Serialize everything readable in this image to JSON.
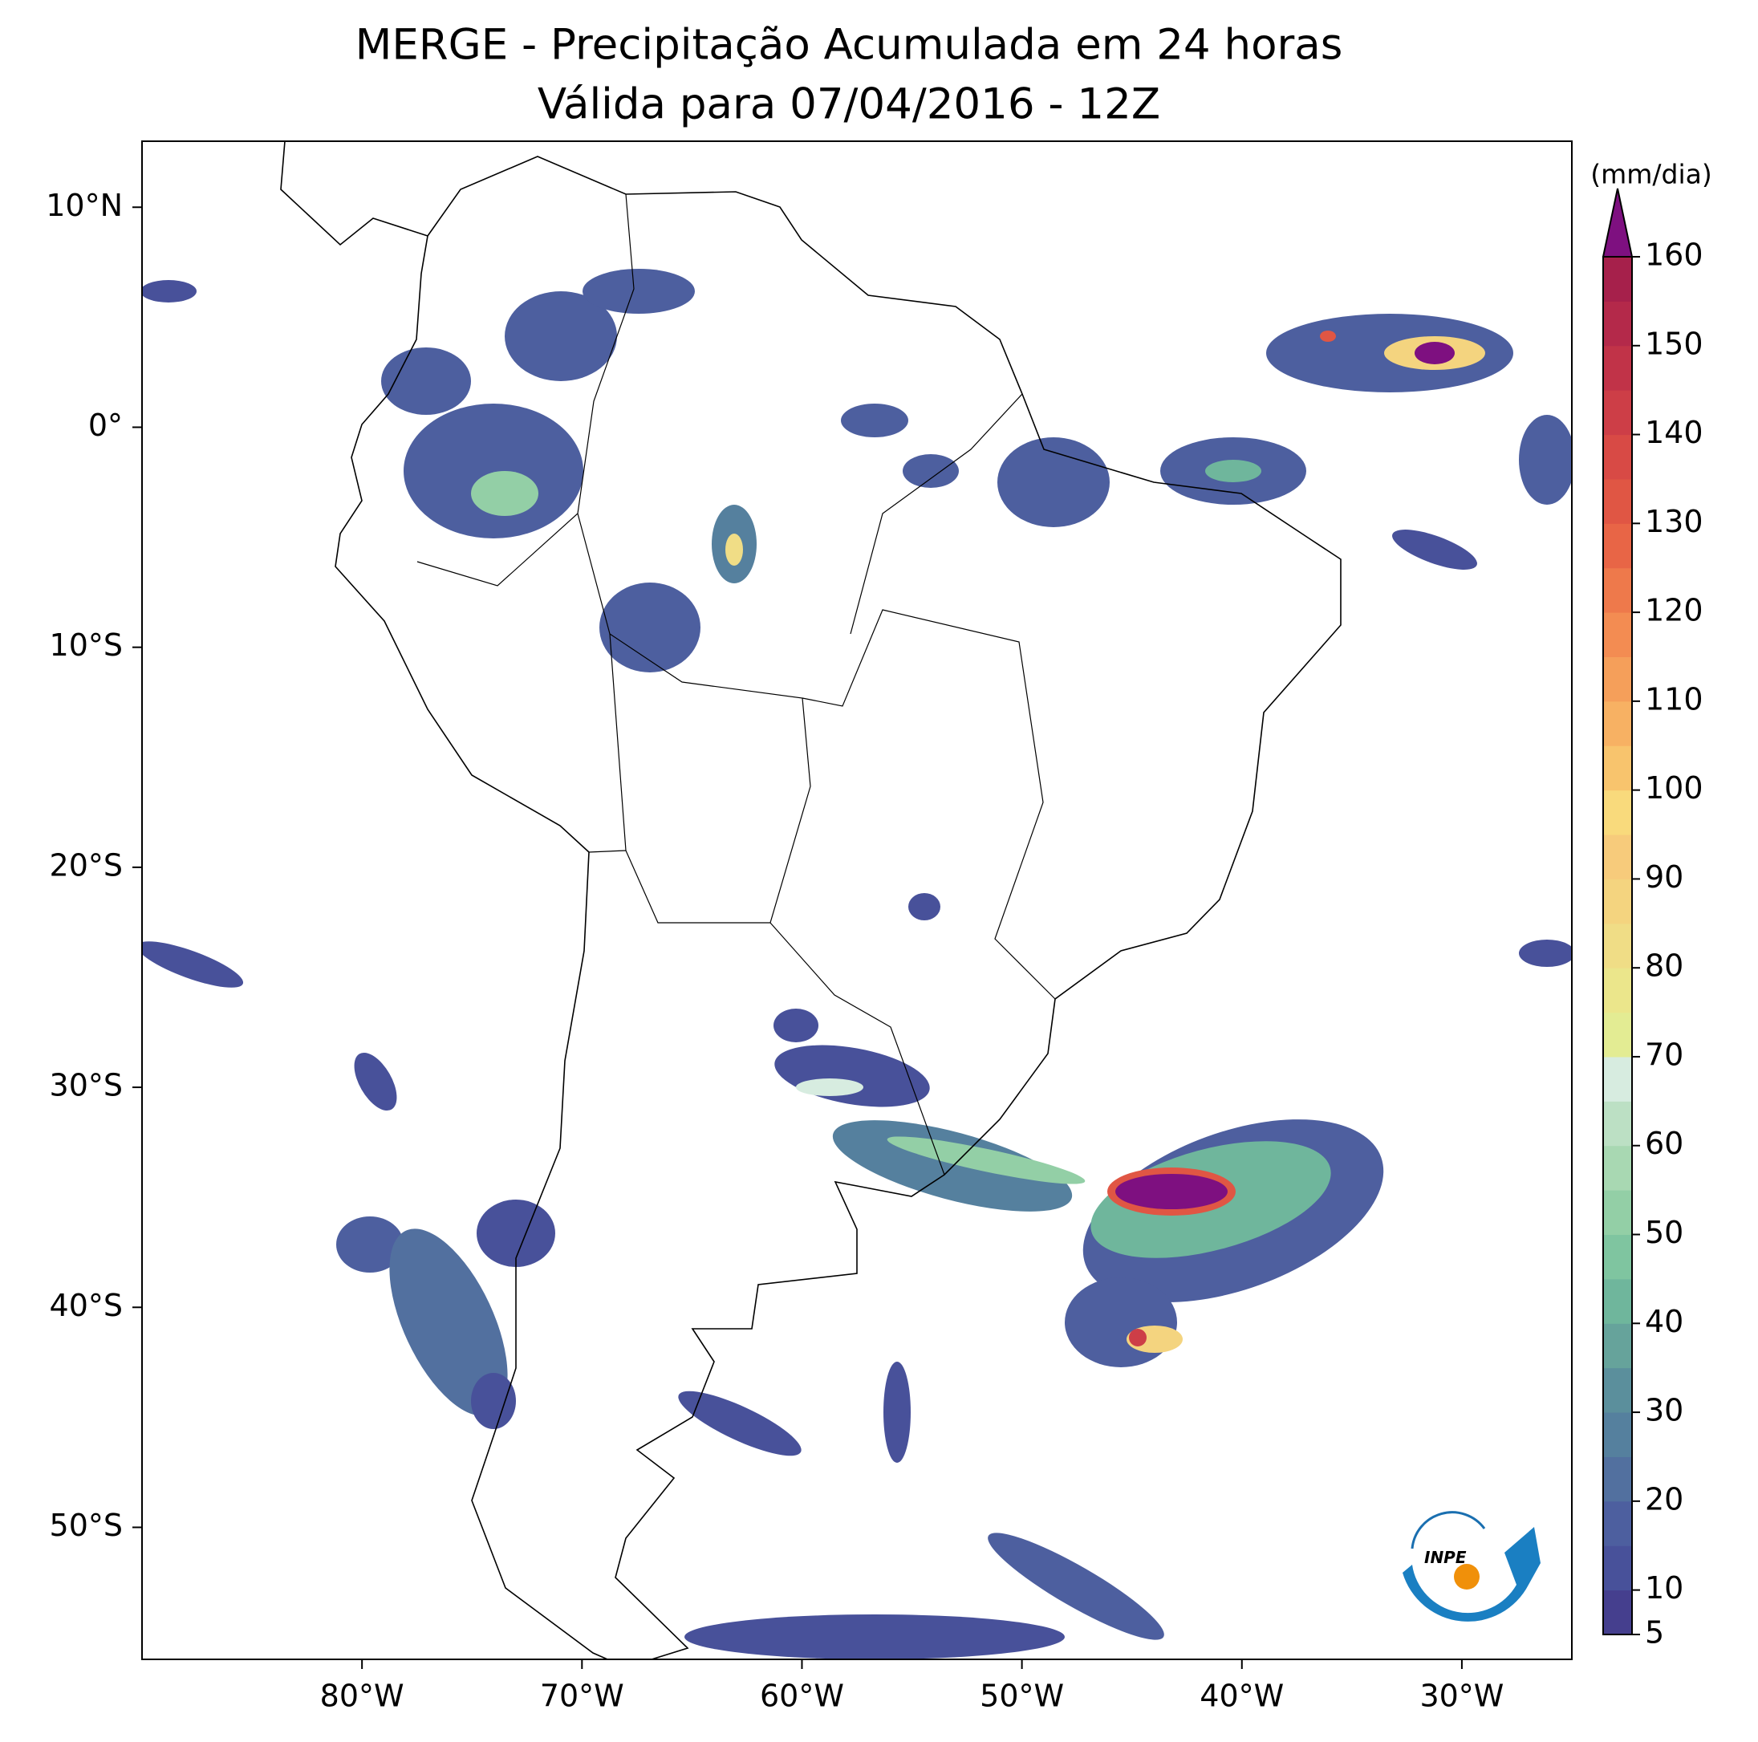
{
  "map": {
    "title": "MERGE - Precipitação Acumulada em 24 horas",
    "subtitle": "Válida para 07/04/2016 - 12Z",
    "xlim": [
      -90,
      -25
    ],
    "ylim": [
      -56,
      13
    ],
    "xticks": [
      {
        "value": -80,
        "label": "80°W"
      },
      {
        "value": -70,
        "label": "70°W"
      },
      {
        "value": -60,
        "label": "60°W"
      },
      {
        "value": -50,
        "label": "50°W"
      },
      {
        "value": -40,
        "label": "40°W"
      },
      {
        "value": -30,
        "label": "30°W"
      }
    ],
    "yticks": [
      {
        "value": 10,
        "label": "10°N"
      },
      {
        "value": 0,
        "label": "0°"
      },
      {
        "value": -10,
        "label": "10°S"
      },
      {
        "value": -20,
        "label": "20°S"
      },
      {
        "value": -30,
        "label": "30°S"
      },
      {
        "value": -40,
        "label": "40°S"
      },
      {
        "value": -50,
        "label": "50°S"
      }
    ],
    "colorbar": {
      "label": "(mm/dia)",
      "range": [
        5,
        160
      ],
      "ticks": [
        5,
        10,
        20,
        30,
        40,
        50,
        60,
        70,
        80,
        90,
        100,
        110,
        120,
        130,
        140,
        150,
        160
      ],
      "levels": [
        5,
        10,
        15,
        20,
        25,
        30,
        35,
        40,
        45,
        50,
        55,
        60,
        65,
        70,
        75,
        80,
        85,
        90,
        95,
        100,
        105,
        110,
        115,
        120,
        125,
        130,
        135,
        140,
        145,
        150,
        155,
        160
      ],
      "colors": [
        "#453f8e",
        "#48519a",
        "#4d5f9f",
        "#52709f",
        "#55809e",
        "#5b8f9c",
        "#66a39b",
        "#6fb69c",
        "#7fc5a0",
        "#93cfa6",
        "#a8d8b2",
        "#bce0c4",
        "#d7ece0",
        "#e3ec93",
        "#ebe68b",
        "#f0dd86",
        "#f4d47f",
        "#f7cb7b",
        "#f9da7c",
        "#f8c46d",
        "#f7b163",
        "#f59f5a",
        "#f38c52",
        "#ee794b",
        "#e86546",
        "#e05644",
        "#d84a45",
        "#cd3e47",
        "#c13348",
        "#b4294a",
        "#a6204b"
      ],
      "extend_color": "#7e1080"
    },
    "logo": "INPE"
  }
}
